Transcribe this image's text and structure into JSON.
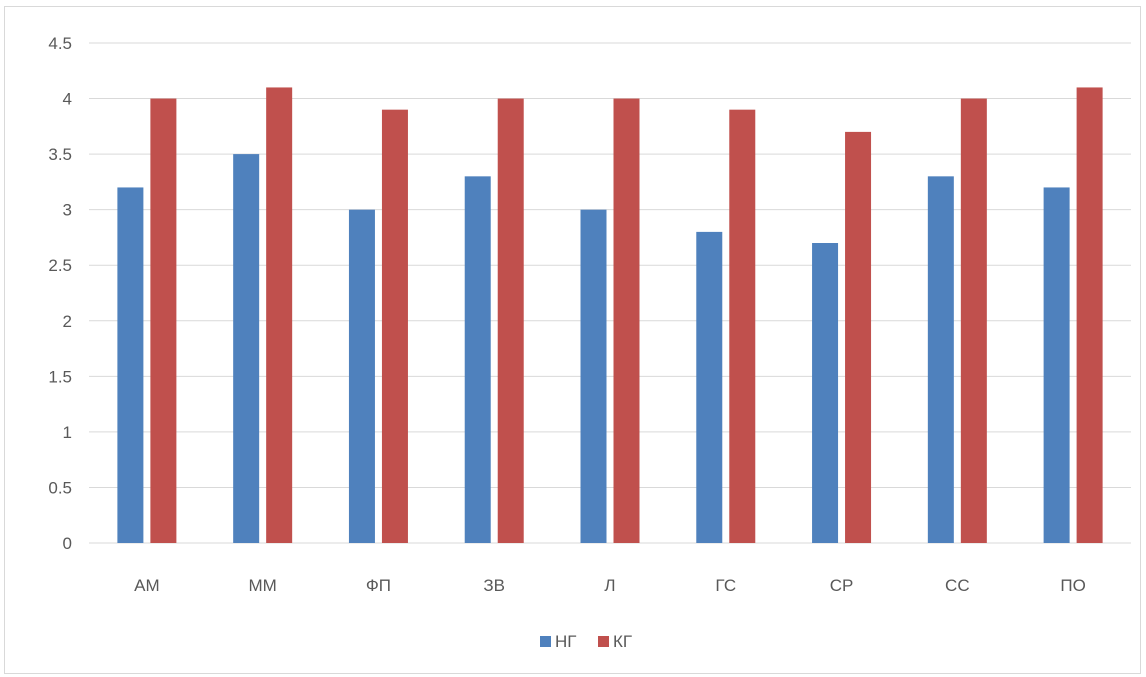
{
  "chart_data": {
    "type": "bar",
    "categories": [
      "АМ",
      "ММ",
      "ФП",
      "ЗВ",
      "Л",
      "ГС",
      "СР",
      "СС",
      "ПО"
    ],
    "series": [
      {
        "name": "НГ",
        "color": "#4f81bd",
        "values": [
          3.2,
          3.5,
          3.0,
          3.3,
          3.0,
          2.8,
          2.7,
          3.3,
          3.2
        ]
      },
      {
        "name": "КГ",
        "color": "#c0504d",
        "values": [
          4.0,
          4.1,
          3.9,
          4.0,
          4.0,
          3.9,
          3.7,
          4.0,
          4.1
        ]
      }
    ],
    "y_ticks": [
      "0",
      "0.5",
      "1",
      "1.5",
      "2",
      "2.5",
      "3",
      "3.5",
      "4",
      "4.5"
    ],
    "ylim": [
      0,
      4.5
    ],
    "grid": true,
    "legend_position": "bottom",
    "title": "",
    "xlabel": "",
    "ylabel": ""
  }
}
